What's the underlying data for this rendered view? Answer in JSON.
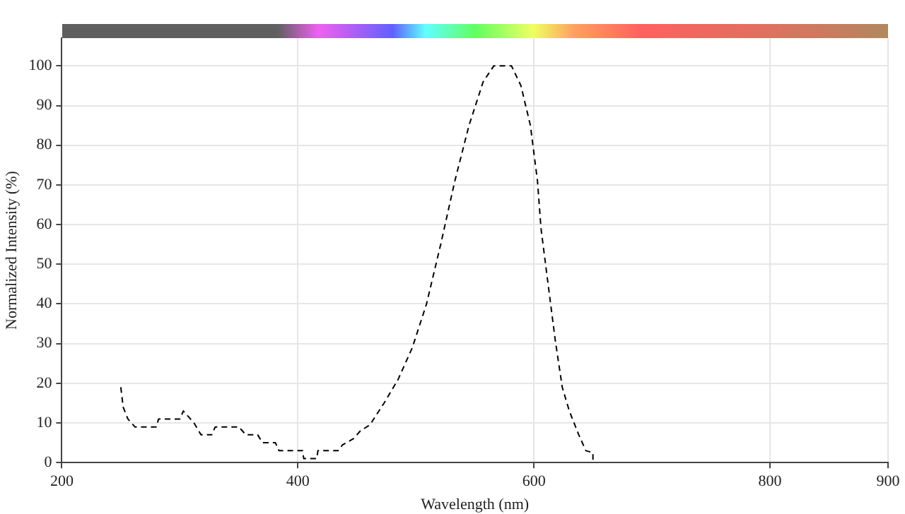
{
  "chart_data": {
    "type": "line",
    "xlabel": "Wavelength (nm)",
    "ylabel": "Normalized Intensity (%)",
    "xlim": [
      200,
      900
    ],
    "xticks": [
      200,
      400,
      600,
      800,
      900
    ],
    "ylim": [
      0,
      107
    ],
    "yticks": [
      0,
      10,
      20,
      30,
      40,
      50,
      60,
      70,
      80,
      90,
      100
    ],
    "grid": true,
    "legend": false,
    "marker": "none",
    "line_style": "dashed",
    "series": [
      {
        "color": "#000000",
        "x": [
          250,
          252,
          256,
          262,
          280,
          282,
          300,
          303,
          312,
          318,
          327,
          330,
          350,
          356,
          366,
          370,
          381,
          384,
          404,
          405,
          416,
          417,
          434,
          438,
          447,
          453,
          461,
          473,
          485,
          497,
          509,
          521,
          533,
          545,
          557,
          566,
          581,
          589,
          597,
          603,
          606,
          612,
          618,
          624,
          630,
          638,
          644,
          650,
          650
        ],
        "values": [
          19,
          14,
          11,
          9,
          9,
          11,
          11,
          13,
          10,
          7,
          7,
          9,
          9,
          7,
          7,
          5,
          5,
          3,
          3,
          1,
          1,
          3,
          3,
          4.5,
          6,
          8,
          9.5,
          15,
          21,
          29,
          40,
          55,
          71,
          85,
          96,
          100,
          100,
          95,
          85,
          71,
          59,
          45,
          31,
          19,
          13,
          7,
          3,
          2.5,
          0
        ]
      }
    ]
  }
}
